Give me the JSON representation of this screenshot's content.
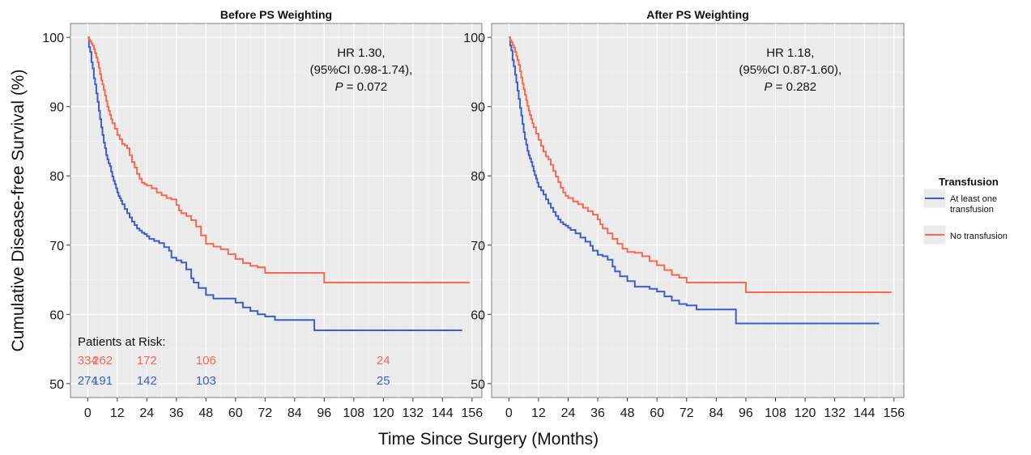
{
  "figure": {
    "ylabel": "Cumulative Disease-free Survival (%)",
    "xlabel": "Time Since Surgery (Months)"
  },
  "legend": {
    "title": "Transfusion",
    "items": [
      {
        "label_lines": [
          "At least one",
          "transfusion"
        ],
        "color": "#3a5fcd"
      },
      {
        "label_lines": [
          "No transfusion"
        ],
        "color": "#f8694f"
      }
    ]
  },
  "colors": {
    "panel_bg": "#ebebeb",
    "grid": "#ffffff",
    "transfusion": "#3a5fcd",
    "no_transfusion": "#f8694f"
  },
  "chart_data": [
    {
      "type": "line",
      "title": "Before PS Weighting",
      "xlim": [
        -7,
        160
      ],
      "ylim": [
        48,
        102
      ],
      "x_ticks": [
        0,
        12,
        24,
        36,
        48,
        60,
        72,
        84,
        96,
        108,
        120,
        132,
        144,
        156
      ],
      "y_ticks": [
        50,
        60,
        70,
        80,
        90,
        100
      ],
      "grid": true,
      "annotation": {
        "lines": [
          "HR 1.30,",
          "(95%CI 0.98-1.74),"
        ],
        "p_label": "P",
        "p_value": "= 0.072"
      },
      "at_risk": {
        "title": "Patients at Risk:",
        "no_transfusion": {
          "x": [
            0,
            6,
            24,
            48,
            120
          ],
          "labels": [
            "334",
            "262",
            "172",
            "106",
            "24"
          ]
        },
        "transfusion": {
          "x": [
            0,
            6,
            24,
            48,
            120
          ],
          "labels": [
            "274",
            "191",
            "142",
            "103",
            "25"
          ]
        }
      },
      "series": [
        {
          "name": "At least one transfusion",
          "color": "#3a5fcd",
          "x": [
            0,
            0.5,
            1,
            1.5,
            2,
            2.5,
            3,
            3.5,
            4,
            4.5,
            5,
            5.5,
            6,
            6.5,
            7,
            7.5,
            8,
            8.5,
            9,
            9.5,
            10,
            10.5,
            11,
            11.5,
            12,
            12.5,
            13,
            13.5,
            14,
            15,
            16,
            17,
            18,
            19,
            20,
            21,
            22,
            23,
            24,
            25,
            27,
            29,
            31,
            33,
            34,
            36,
            38,
            40,
            42,
            43,
            45,
            48,
            51,
            54,
            57,
            60,
            63,
            66,
            69,
            72,
            76,
            80,
            84,
            88,
            90,
            92,
            96,
            100,
            110,
            120,
            130,
            140,
            152
          ],
          "y": [
            100,
            98.6,
            97.9,
            96.4,
            95.5,
            94.1,
            93.2,
            91.9,
            90.7,
            89.4,
            88.2,
            87,
            85.9,
            84.8,
            84,
            83,
            82.4,
            81.8,
            81.4,
            80.6,
            79.9,
            79.3,
            78.8,
            78.2,
            77.6,
            77.1,
            76.8,
            76.4,
            75.9,
            75.2,
            74.6,
            74,
            73.4,
            72.9,
            72.4,
            72.1,
            71.8,
            71.6,
            71.3,
            70.9,
            70.6,
            70.3,
            69.7,
            69.2,
            68.2,
            67.8,
            67.5,
            66.5,
            65.2,
            64.6,
            63.8,
            62.8,
            62.3,
            62.3,
            62.3,
            61.7,
            61,
            60.5,
            60,
            59.7,
            59.2,
            59.2,
            59.2,
            59.2,
            59.2,
            57.7,
            57.7,
            57.7,
            57.7,
            57.7,
            57.7,
            57.7,
            57.7
          ]
        },
        {
          "name": "No transfusion",
          "color": "#f8694f",
          "x": [
            0,
            0.5,
            1,
            1.5,
            2,
            2.5,
            3,
            3.5,
            4,
            4.5,
            5,
            5.5,
            6,
            6.5,
            7,
            7.5,
            8,
            8.5,
            9,
            9.5,
            10,
            11,
            12,
            13,
            14,
            15,
            16,
            17,
            18,
            19,
            20,
            21,
            22,
            23,
            24,
            26,
            28,
            30,
            32,
            34,
            36,
            37,
            38,
            40,
            42,
            44,
            46,
            48,
            51,
            54,
            57,
            60,
            63,
            66,
            69,
            72,
            78,
            84,
            90,
            96,
            100,
            110,
            120,
            130,
            140,
            155
          ],
          "y": [
            100,
            99.7,
            99.4,
            99.1,
            98.8,
            98.3,
            97.7,
            97.1,
            96.4,
            95.6,
            94.7,
            93.8,
            93.2,
            92.4,
            91.6,
            90.8,
            90,
            89.4,
            88.8,
            88.2,
            87.6,
            86.8,
            85.9,
            85.3,
            84.6,
            84.4,
            84,
            83,
            82,
            81.2,
            80.3,
            79.6,
            79,
            78.8,
            78.6,
            78.2,
            77.6,
            77.2,
            76.8,
            76.6,
            75.8,
            75,
            74.6,
            74.2,
            73.6,
            72.7,
            71.4,
            70.2,
            69.8,
            69.4,
            68.7,
            68,
            67.4,
            67,
            66.8,
            66,
            66,
            66,
            66,
            64.6,
            64.6,
            64.6,
            64.6,
            64.6,
            64.6,
            64.6
          ]
        }
      ]
    },
    {
      "type": "line",
      "title": "After PS Weighting",
      "xlim": [
        -7,
        160
      ],
      "ylim": [
        48,
        102
      ],
      "x_ticks": [
        0,
        12,
        24,
        36,
        48,
        60,
        72,
        84,
        96,
        108,
        120,
        132,
        144,
        156
      ],
      "y_ticks": [
        50,
        60,
        70,
        80,
        90,
        100
      ],
      "grid": true,
      "annotation": {
        "lines": [
          "HR 1.18,",
          "(95%CI 0.87-1.60),"
        ],
        "p_label": "P",
        "p_value": "= 0.282"
      },
      "series": [
        {
          "name": "At least one transfusion",
          "color": "#3a5fcd",
          "x": [
            0,
            0.5,
            1,
            1.5,
            2,
            2.5,
            3,
            3.5,
            4,
            4.5,
            5,
            5.5,
            6,
            6.5,
            7,
            7.5,
            8,
            8.5,
            9,
            9.5,
            10,
            10.5,
            11,
            11.5,
            12,
            13,
            14,
            15,
            16,
            17,
            18,
            19,
            20,
            21,
            22,
            23,
            24,
            25,
            27,
            29,
            31,
            33,
            34,
            36,
            38,
            40,
            42,
            43,
            45,
            48,
            51,
            54,
            57,
            60,
            63,
            66,
            69,
            72,
            76,
            80,
            84,
            88,
            90,
            92,
            96,
            100,
            110,
            120,
            130,
            140,
            150
          ],
          "y": [
            100,
            98.8,
            98.1,
            96.7,
            95.8,
            94.6,
            93.5,
            92.3,
            91.1,
            89.8,
            88.7,
            87.5,
            86.3,
            85.3,
            84.5,
            83.6,
            83,
            82.5,
            82,
            81.4,
            80.7,
            80.1,
            79.6,
            79,
            78.4,
            77.9,
            77.3,
            76.6,
            76,
            75.4,
            74.8,
            74.2,
            73.7,
            73.3,
            73,
            72.8,
            72.5,
            72.2,
            71.7,
            71.1,
            70.5,
            69.9,
            69.2,
            68.6,
            68.4,
            67.9,
            66.9,
            66.2,
            65.5,
            64.8,
            64,
            64,
            63.7,
            63.3,
            62.6,
            62,
            61.5,
            61.3,
            60.7,
            60.7,
            60.7,
            60.7,
            60.7,
            58.7,
            58.7,
            58.7,
            58.7,
            58.7,
            58.7,
            58.7,
            58.7
          ]
        },
        {
          "name": "No transfusion",
          "color": "#f8694f",
          "x": [
            0,
            0.5,
            1,
            1.5,
            2,
            2.5,
            3,
            3.5,
            4,
            4.5,
            5,
            5.5,
            6,
            6.5,
            7,
            7.5,
            8,
            8.5,
            9,
            9.5,
            10,
            11,
            12,
            13,
            14,
            15,
            16,
            17,
            18,
            19,
            20,
            21,
            22,
            23,
            24,
            26,
            28,
            30,
            32,
            34,
            36,
            37,
            38,
            40,
            42,
            44,
            46,
            48,
            51,
            54,
            57,
            60,
            63,
            66,
            69,
            72,
            78,
            84,
            90,
            96,
            100,
            110,
            120,
            130,
            140,
            155
          ],
          "y": [
            100,
            99.6,
            99.3,
            98.9,
            98.5,
            97.9,
            97.3,
            96.7,
            96,
            95.1,
            94.2,
            93.3,
            92.5,
            91.7,
            90.9,
            90.1,
            89.4,
            88.8,
            88.2,
            87.6,
            87,
            86.1,
            85.2,
            84.3,
            83.5,
            82.8,
            82.4,
            81.6,
            80.7,
            79.9,
            79.1,
            78.3,
            77.6,
            77.1,
            76.8,
            76.3,
            75.9,
            75.4,
            74.9,
            74.4,
            73.7,
            73,
            72.4,
            71.7,
            70.9,
            70.2,
            69.5,
            69,
            68.9,
            68.4,
            67.7,
            67.1,
            66.4,
            65.7,
            65.3,
            64.6,
            64.6,
            64.6,
            64.6,
            63.2,
            63.2,
            63.2,
            63.2,
            63.2,
            63.2,
            63.2
          ]
        }
      ]
    }
  ]
}
